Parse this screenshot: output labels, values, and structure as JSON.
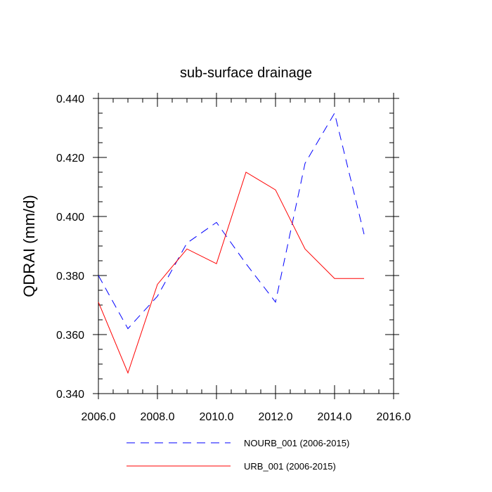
{
  "chart_data": {
    "type": "line",
    "title": "sub-surface drainage",
    "xlabel": "",
    "ylabel": "QDRAI  (mm/d)",
    "xlim": [
      2006.0,
      2016.0
    ],
    "ylim": [
      0.34,
      0.44
    ],
    "x_ticks": [
      "2006.0",
      "2008.0",
      "2010.0",
      "2012.0",
      "2014.0",
      "2016.0"
    ],
    "y_ticks": [
      "0.340",
      "0.360",
      "0.380",
      "0.400",
      "0.420",
      "0.440"
    ],
    "x": [
      2006,
      2007,
      2008,
      2009,
      2010,
      2011,
      2012,
      2013,
      2014,
      2015
    ],
    "series": [
      {
        "name": "NOURB_001 (2006-2015)",
        "values": [
          0.38,
          0.362,
          0.373,
          0.391,
          0.398,
          0.384,
          0.371,
          0.418,
          0.435,
          0.394
        ],
        "color": "#0000ff",
        "dashed": true
      },
      {
        "name": "URB_001 (2006-2015)",
        "values": [
          0.371,
          0.347,
          0.377,
          0.389,
          0.384,
          0.415,
          0.409,
          0.389,
          0.379,
          0.379
        ],
        "color": "#ff0000",
        "dashed": false
      }
    ],
    "grid": false,
    "legend_position": "bottom"
  }
}
